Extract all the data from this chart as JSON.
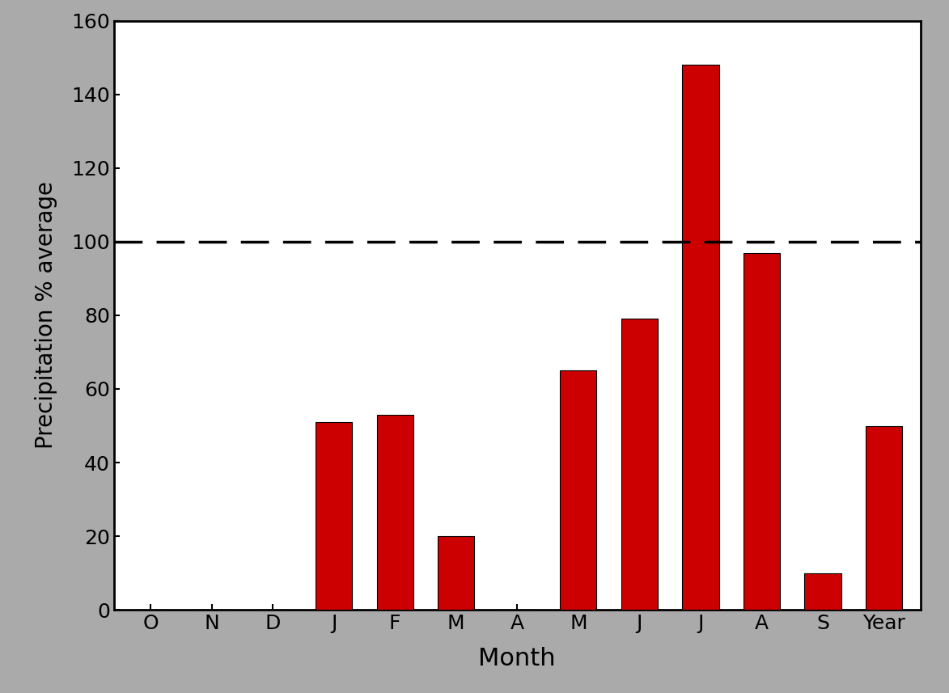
{
  "categories": [
    "O",
    "N",
    "D",
    "J",
    "F",
    "M",
    "A",
    "M",
    "J",
    "J",
    "A",
    "S",
    "Year"
  ],
  "values": [
    0,
    0,
    0,
    51,
    53,
    20,
    0,
    65,
    79,
    148,
    97,
    10,
    50
  ],
  "bar_color": "#CC0000",
  "bar_edgecolor": "#000000",
  "xlabel": "Month",
  "ylabel": "Precipitation % average",
  "ylim": [
    0,
    160
  ],
  "yticks": [
    0,
    20,
    40,
    60,
    80,
    100,
    120,
    140,
    160
  ],
  "dashed_line_y": 100,
  "plot_bg_color": "#ffffff",
  "fig_bg_color": "#aaaaaa",
  "ylabel_fontsize": 20,
  "xlabel_fontsize": 22,
  "tick_fontsize": 18,
  "bar_width": 0.6
}
